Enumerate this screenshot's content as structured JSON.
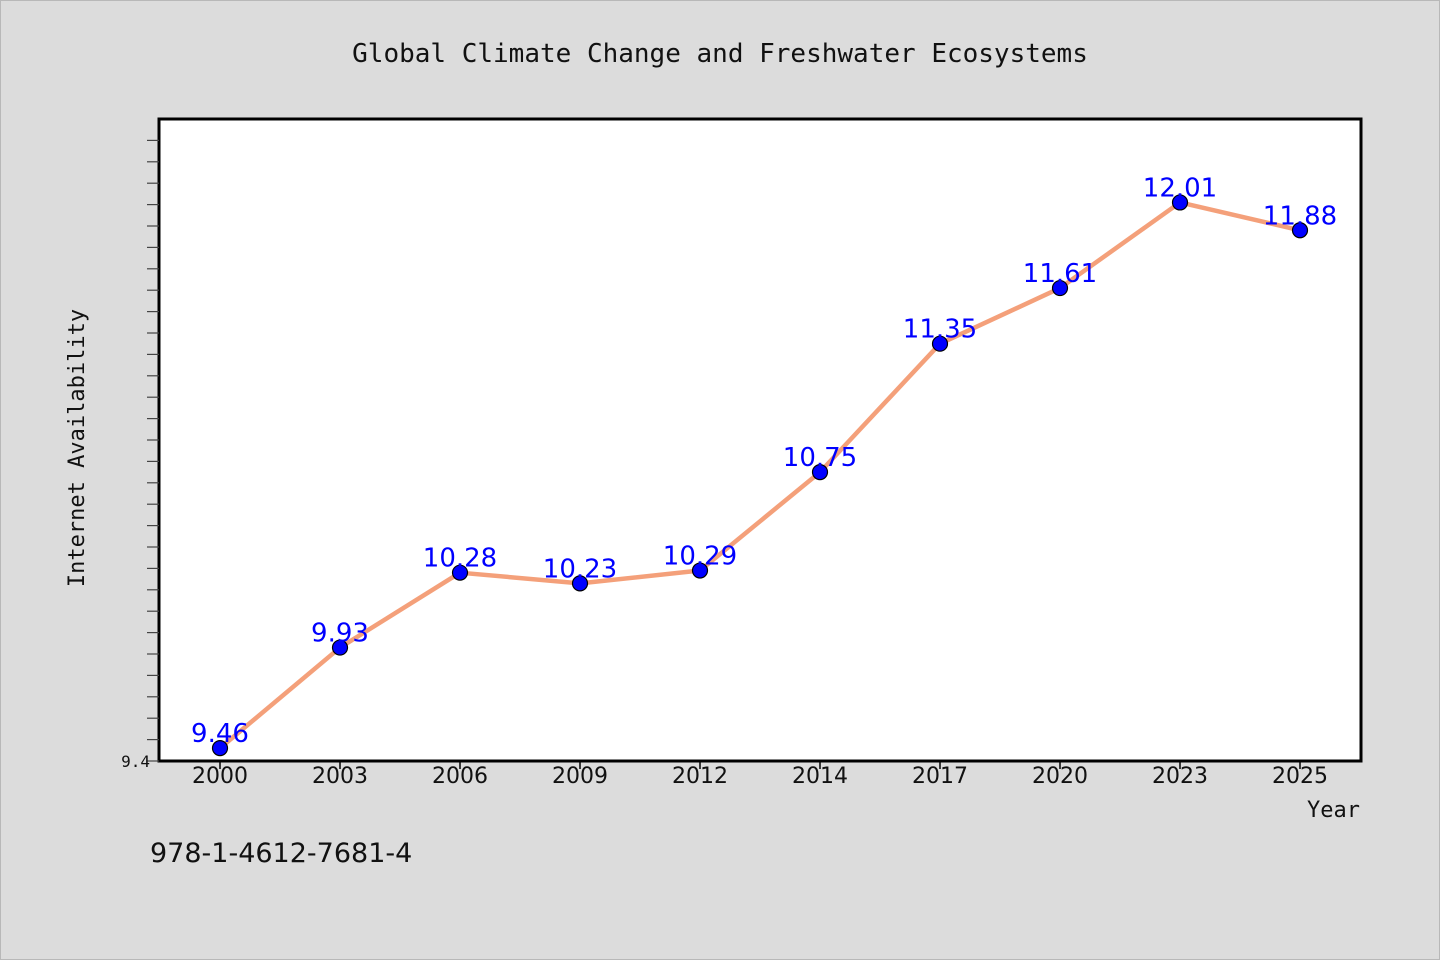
{
  "chart_data": {
    "type": "line",
    "title": "Global Climate Change and Freshwater Ecosystems",
    "xlabel": "Year",
    "ylabel": "Internet Availability",
    "x": [
      "2000",
      "2003",
      "2006",
      "2009",
      "2012",
      "2014",
      "2017",
      "2020",
      "2023",
      "2025"
    ],
    "series": [
      {
        "values": [
          9.46,
          9.93,
          10.28,
          10.23,
          10.29,
          10.75,
          11.35,
          11.61,
          12.01,
          11.88
        ],
        "data_labels": [
          "9.46",
          "9.93",
          "10.28",
          "10.23",
          "10.29",
          "10.75",
          "11.35",
          "11.61",
          "12.01",
          "11.88"
        ]
      }
    ],
    "ylim": [
      9.4,
      12.4
    ],
    "y_tick_label": "9.4",
    "grid": false,
    "legend": "none",
    "colors": {
      "line": "#f4a07a",
      "marker": "#0000ff",
      "data_label": "#0000ff",
      "background": "#dcdcdc",
      "plot_background": "#ffffff"
    }
  },
  "footer": {
    "isbn": "978-1-4612-7681-4"
  }
}
